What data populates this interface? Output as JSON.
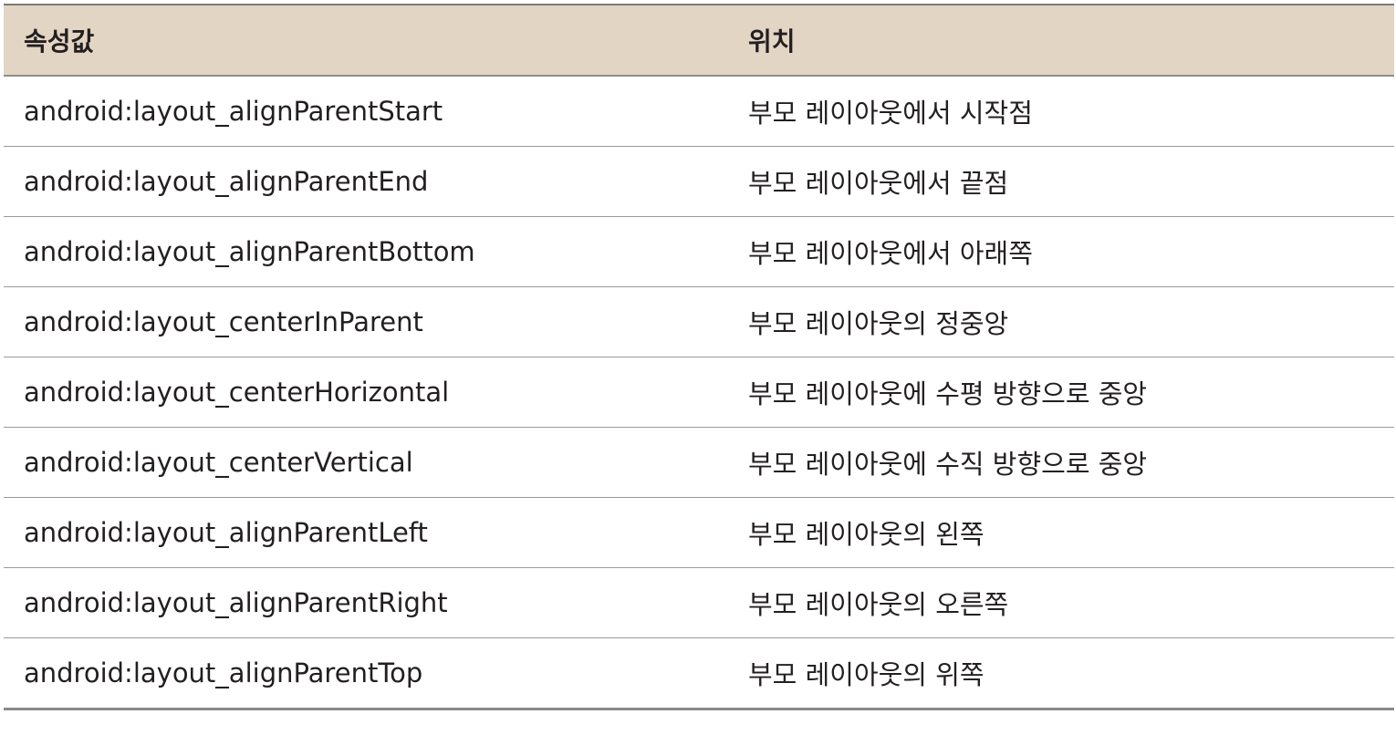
{
  "table": {
    "headers": [
      "속성값",
      "위치"
    ],
    "rows": [
      [
        "android:layout_alignParentStart",
        "부모 레이아웃에서 시작점"
      ],
      [
        "android:layout_alignParentEnd",
        "부모 레이아웃에서 끝점"
      ],
      [
        "android:layout_alignParentBottom",
        "부모 레이아웃에서 아래쪽"
      ],
      [
        "android:layout_centerInParent",
        "부모 레이아웃의 정중앙"
      ],
      [
        "android:layout_centerHorizontal",
        "부모 레이아웃에 수평 방향으로 중앙"
      ],
      [
        "android:layout_centerVertical",
        "부모 레이아웃에 수직 방향으로 중앙"
      ],
      [
        "android:layout_alignParentLeft",
        "부모 레이아웃의 왼쪽"
      ],
      [
        "android:layout_alignParentRight",
        "부모 레이아웃의 오른쪽"
      ],
      [
        "android:layout_alignParentTop",
        "부모 레이아웃의 위쪽"
      ]
    ]
  },
  "colors": {
    "header_background": "#e3d5c4",
    "text": "#231f20",
    "row_divider": "#9a9a9a"
  }
}
